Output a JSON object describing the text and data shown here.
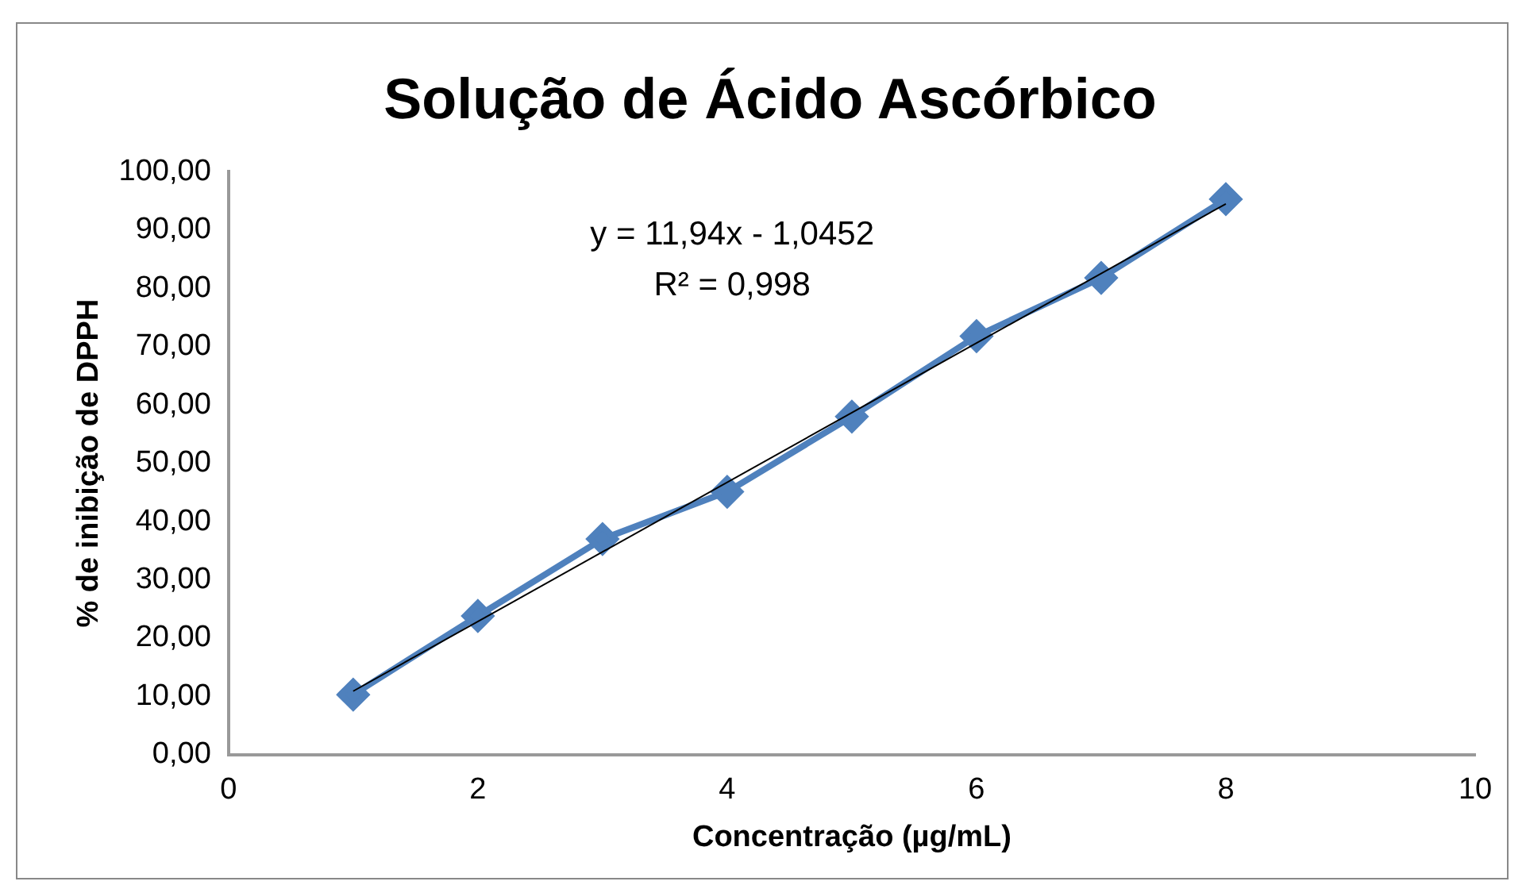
{
  "chart_data": {
    "type": "line",
    "title": "Solução de Ácido Ascórbico",
    "xlabel": "Concentração (µg/mL)",
    "ylabel": "% de inibição de DPPH",
    "x": [
      1,
      2,
      3,
      4,
      5,
      6,
      7,
      8
    ],
    "series": [
      {
        "color": "#4f81bd",
        "values": [
          10.3,
          23.8,
          37.0,
          45.1,
          58.0,
          71.8,
          81.8,
          95.3
        ],
        "marker": "diamond"
      },
      {
        "color": "#000000",
        "x": [
          1,
          8
        ],
        "values": [
          10.9,
          94.5
        ],
        "marker": "none"
      }
    ],
    "xlim": [
      0,
      10
    ],
    "xticks": [
      0,
      2,
      4,
      6,
      8,
      10
    ],
    "ylim": [
      0,
      100
    ],
    "yticks": [
      {
        "value": 0,
        "label": "0,00"
      },
      {
        "value": 10,
        "label": "10,00"
      },
      {
        "value": 20,
        "label": "20,00"
      },
      {
        "value": 30,
        "label": "30,00"
      },
      {
        "value": 40,
        "label": "40,00"
      },
      {
        "value": 50,
        "label": "50,00"
      },
      {
        "value": 60,
        "label": "60,00"
      },
      {
        "value": 70,
        "label": "70,00"
      },
      {
        "value": 80,
        "label": "80,00"
      },
      {
        "value": 90,
        "label": "90,00"
      },
      {
        "value": 100,
        "label": "100,00"
      }
    ],
    "annotations": [
      "y = 11,94x - 1,0452",
      "R² = 0,998"
    ],
    "grid": false,
    "legend": false
  }
}
